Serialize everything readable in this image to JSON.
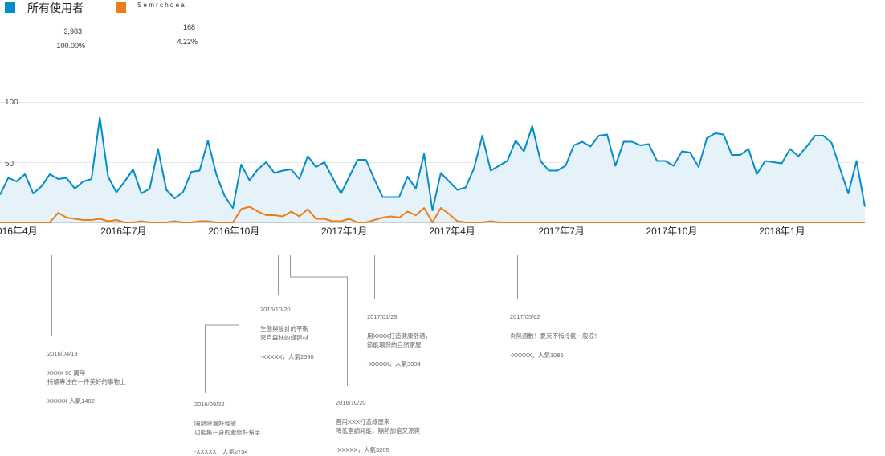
{
  "legend": {
    "items": [
      {
        "name": "所有使用者",
        "color": "#058dc7",
        "total": "3,983",
        "percent": "100.00%"
      },
      {
        "name": "S e m r c h o e a",
        "color": "#ed7e17",
        "total": "168",
        "percent": "4.22%"
      }
    ]
  },
  "chart_data": {
    "type": "area",
    "y_ticks": [
      "100",
      "50"
    ],
    "ylim": [
      0,
      100
    ],
    "x_tick_labels": [
      "2016年4月",
      "2016年7月",
      "2016年10月",
      "2017年1月",
      "2017年4月",
      "2017年7月",
      "2017年10月",
      "2018年1月"
    ],
    "x_start": "2016-03-20",
    "x_end": "2018-03-11",
    "x_tick_dates": [
      "2016-04-01",
      "2016-07-01",
      "2016-10-01",
      "2017-01-01",
      "2017-04-01",
      "2017-07-01",
      "2017-10-01",
      "2018-01-01"
    ],
    "grid": true,
    "series": [
      {
        "name": "所有使用者",
        "color": "#058dc7",
        "fill": "#e6f2f9",
        "values": [
          23,
          37,
          34,
          40,
          24,
          30,
          40,
          36,
          37,
          28,
          34,
          36,
          87,
          38,
          25,
          34,
          44,
          24,
          28,
          61,
          27,
          20,
          25,
          42,
          43,
          68,
          40,
          22,
          12,
          48,
          35,
          44,
          50,
          41,
          43,
          44,
          36,
          55,
          46,
          50,
          37,
          24,
          38,
          52,
          52,
          36,
          21,
          21,
          21,
          38,
          28,
          57,
          10,
          41,
          34,
          27,
          29,
          45,
          72,
          43,
          47,
          51,
          68,
          59,
          80,
          51,
          43,
          43,
          47,
          64,
          67,
          63,
          72,
          73,
          47,
          67,
          67,
          64,
          65,
          51,
          51,
          47,
          59,
          58,
          46,
          70,
          74,
          73,
          56,
          56,
          61,
          40,
          51,
          50,
          49,
          61,
          55,
          63,
          72,
          72,
          66,
          45,
          24,
          51,
          13
        ]
      },
      {
        "name": "Semrchoea",
        "color": "#ed7e17",
        "values": [
          0,
          0,
          0,
          0,
          0,
          0,
          0,
          8,
          4,
          3,
          2,
          2,
          3,
          1,
          2,
          0,
          0,
          1,
          0,
          0,
          0,
          1,
          0,
          0,
          1,
          1,
          0,
          0,
          0,
          11,
          13,
          9,
          6,
          6,
          5,
          9,
          5,
          11,
          3,
          3,
          1,
          1,
          3,
          0,
          0,
          2,
          4,
          5,
          4,
          9,
          6,
          12,
          0,
          12,
          7,
          1,
          0,
          0,
          0,
          1,
          0,
          0,
          0,
          0,
          0,
          0,
          0,
          0,
          0,
          0,
          0,
          0,
          0,
          0,
          0,
          0,
          0,
          0,
          0,
          0,
          0,
          0,
          0,
          0,
          0,
          0,
          0,
          0,
          0,
          0,
          0,
          0,
          0,
          0,
          0,
          0,
          0,
          0,
          0,
          0,
          0,
          0,
          0,
          0,
          0
        ]
      }
    ]
  },
  "annotations": [
    {
      "date": "2016/04/13",
      "lines": [
        "XXXX 50 周年",
        "持續專注在一件美好的事物上"
      ],
      "author": "XXXXX 人氣1482"
    },
    {
      "date": "2016/09/22",
      "lines": [
        "隔熱除溼好輕省",
        "功能集一身的蓋修好幫手"
      ],
      "author": "-XXXXX，人氣2754"
    },
    {
      "date": "2016/10/20",
      "lines": [
        "生態與設計的平衡",
        "來自森林的綠建材"
      ],
      "author": "-XXXXX，人氣2590"
    },
    {
      "date": "2016/10/20",
      "lines": [
        "善用XXX打造綠屋來",
        "降低室調耗能，隔熱加倍又涼爽"
      ],
      "author": "-XXXXX，人氣3205"
    },
    {
      "date": "2017/01/23",
      "lines": [
        "用XXXX打造健康舒適，",
        "節能環保的自然家屋"
      ],
      "author": "-XXXXX，人氣3034"
    },
    {
      "date": "2017/05/02",
      "lines": [
        "炎熱週數！夏天不悔冷氣一般涼！"
      ],
      "author": "-XXXXX，人氣1086"
    }
  ]
}
